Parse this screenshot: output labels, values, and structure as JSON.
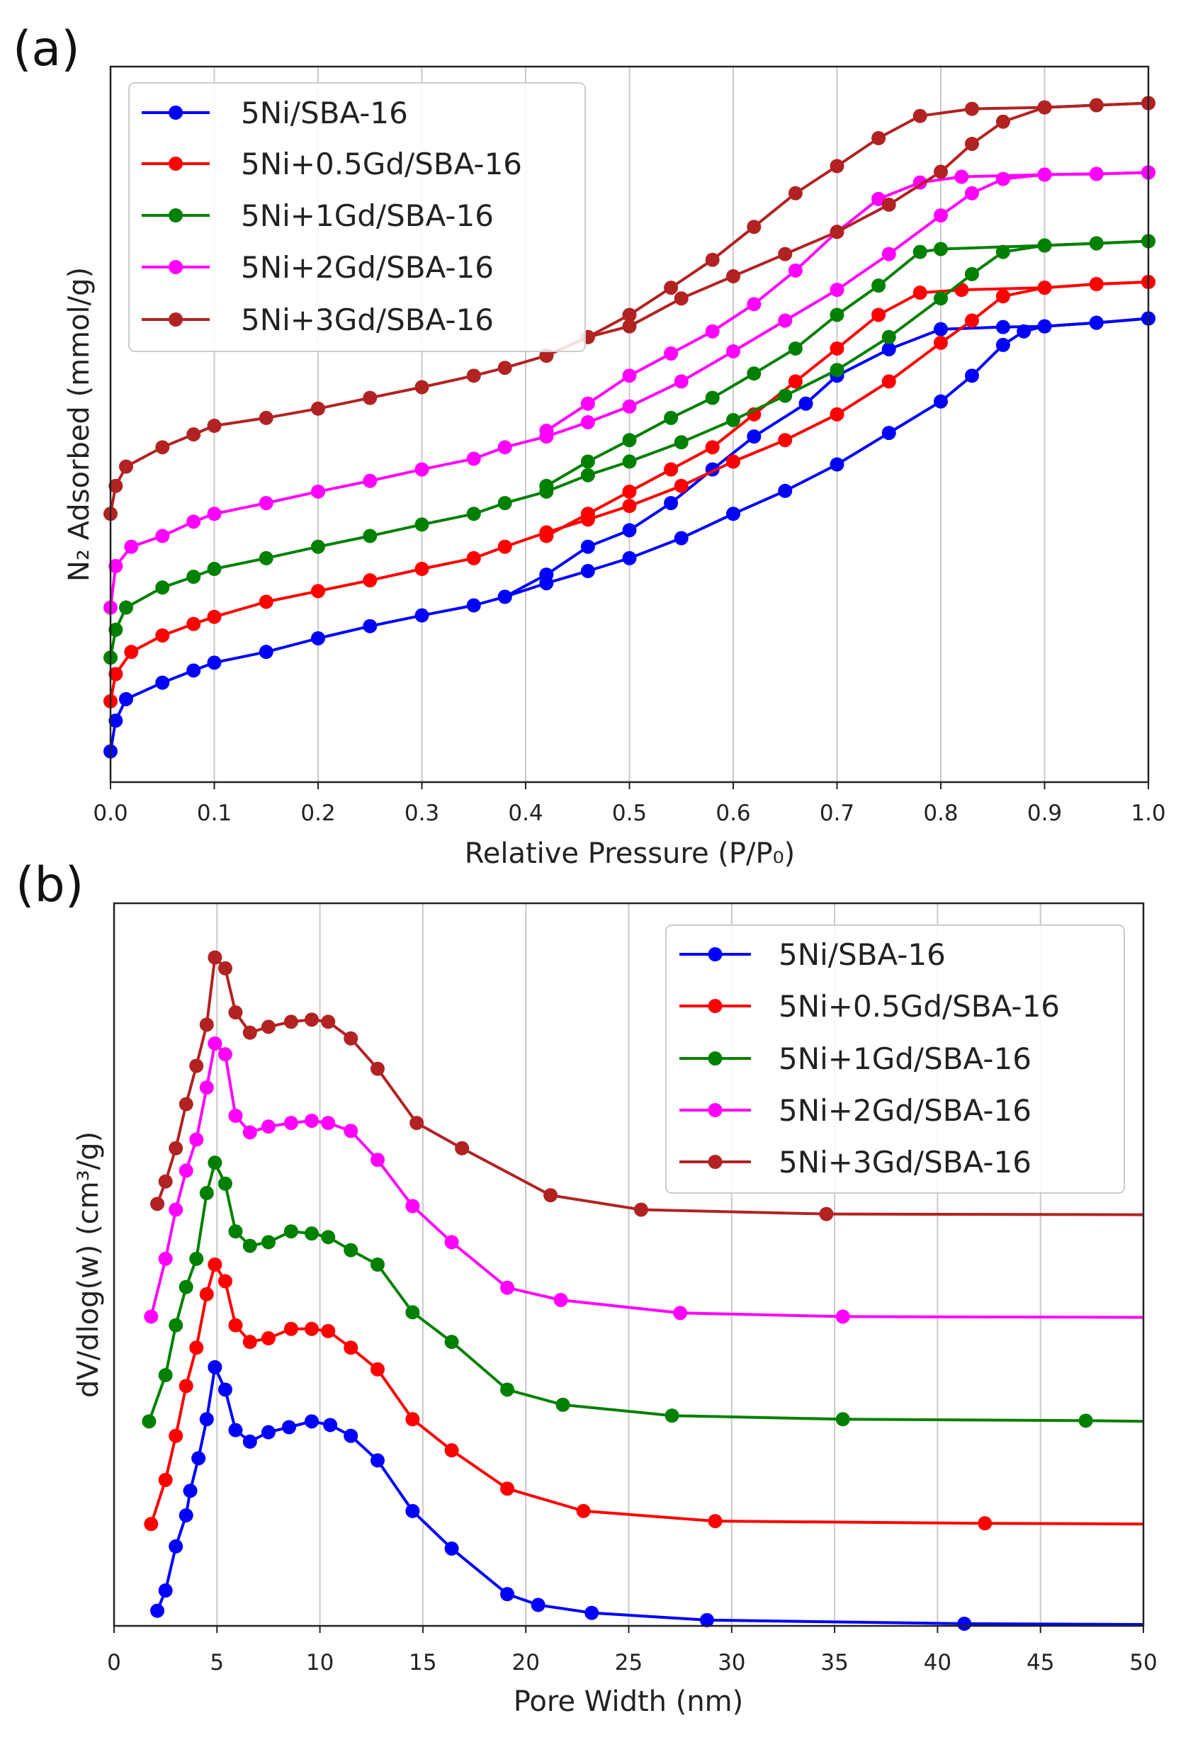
{
  "chart_data": [
    {
      "type": "line",
      "panel_label": "(a)",
      "xlabel": "Relative Pressure (P/P₀)",
      "ylabel": "N₂ Adsorbed (mmol/g)",
      "xlim": [
        0,
        1.0
      ],
      "ylim": [
        0,
        100
      ],
      "y_units_note": "arbitrary (no y tick labels shown)",
      "xticks": [
        "0.0",
        "0.1",
        "0.2",
        "0.3",
        "0.4",
        "0.5",
        "0.6",
        "0.7",
        "0.8",
        "0.9",
        "1.0"
      ],
      "grid": "vertical",
      "legend_position": "top-left",
      "series": [
        {
          "name": "5Ni/SBA-16",
          "color": "#0000ff",
          "adsorption": {
            "x": [
              0,
              0.005,
              0.015,
              0.05,
              0.08,
              0.1,
              0.15,
              0.2,
              0.25,
              0.3,
              0.35,
              0.38,
              0.42,
              0.46,
              0.5,
              0.55,
              0.6,
              0.65,
              0.7,
              0.75,
              0.8,
              0.83,
              0.86,
              0.88,
              0.9,
              0.95,
              1.0
            ],
            "y": [
              4.3,
              8.6,
              11.6,
              13.9,
              15.6,
              16.7,
              18.2,
              20.1,
              21.8,
              23.3,
              24.7,
              25.9,
              27.8,
              29.5,
              31.3,
              34.1,
              37.5,
              40.7,
              44.4,
              48.8,
              53.2,
              56.8,
              61.1,
              63.0,
              63.7,
              64.2,
              64.8
            ]
          },
          "desorption": {
            "x": [
              1.0,
              0.95,
              0.9,
              0.86,
              0.8,
              0.75,
              0.7,
              0.67,
              0.62,
              0.58,
              0.54,
              0.5,
              0.46,
              0.42,
              0.38
            ],
            "y": [
              64.8,
              64.2,
              63.7,
              63.6,
              63.3,
              60.5,
              56.8,
              52.9,
              48.3,
              43.7,
              39.0,
              35.2,
              32.9,
              29.0,
              25.9
            ]
          }
        },
        {
          "name": "5Ni+0.5Gd/SBA-16",
          "color": "#ff0000",
          "adsorption": {
            "x": [
              0,
              0.005,
              0.02,
              0.05,
              0.08,
              0.1,
              0.15,
              0.2,
              0.25,
              0.3,
              0.35,
              0.38,
              0.42,
              0.46,
              0.5,
              0.55,
              0.6,
              0.65,
              0.7,
              0.75,
              0.8,
              0.83,
              0.86,
              0.9,
              0.95,
              1.0
            ],
            "y": [
              11.3,
              15.1,
              18.2,
              20.5,
              22.1,
              23.1,
              25.2,
              26.7,
              28.2,
              29.8,
              31.3,
              32.9,
              34.9,
              36.7,
              38.6,
              41.4,
              44.8,
              47.8,
              51.4,
              56.0,
              61.4,
              64.5,
              67.9,
              69.1,
              69.6,
              69.9
            ]
          },
          "desorption": {
            "x": [
              1.0,
              0.95,
              0.9,
              0.82,
              0.78,
              0.74,
              0.7,
              0.66,
              0.62,
              0.58,
              0.54,
              0.5,
              0.46,
              0.42
            ],
            "y": [
              69.9,
              69.6,
              69.1,
              68.8,
              68.4,
              65.3,
              60.6,
              56.0,
              51.4,
              46.8,
              43.7,
              40.6,
              37.5,
              34.4
            ]
          }
        },
        {
          "name": "5Ni+1Gd/SBA-16",
          "color": "#008000",
          "adsorption": {
            "x": [
              0,
              0.005,
              0.015,
              0.05,
              0.08,
              0.1,
              0.15,
              0.2,
              0.25,
              0.3,
              0.35,
              0.38,
              0.42,
              0.46,
              0.5,
              0.55,
              0.6,
              0.65,
              0.7,
              0.75,
              0.8,
              0.83,
              0.86,
              0.9,
              0.95,
              1.0
            ],
            "y": [
              17.4,
              21.3,
              24.4,
              27.2,
              28.7,
              29.8,
              31.3,
              32.9,
              34.4,
              36.0,
              37.5,
              39.0,
              40.6,
              42.9,
              44.8,
              47.5,
              50.6,
              54.0,
              57.6,
              62.2,
              67.6,
              71.0,
              74.1,
              75.0,
              75.3,
              75.6
            ]
          },
          "desorption": {
            "x": [
              1.0,
              0.95,
              0.9,
              0.8,
              0.78,
              0.74,
              0.7,
              0.66,
              0.62,
              0.58,
              0.54,
              0.5,
              0.46,
              0.42
            ],
            "y": [
              75.6,
              75.3,
              75.0,
              74.5,
              74.1,
              69.4,
              65.3,
              60.6,
              57.1,
              53.7,
              50.9,
              47.8,
              44.8,
              41.4
            ]
          }
        },
        {
          "name": "5Ni+2Gd/SBA-16",
          "color": "#ff00ff",
          "adsorption": {
            "x": [
              0,
              0.005,
              0.02,
              0.05,
              0.08,
              0.1,
              0.15,
              0.2,
              0.25,
              0.3,
              0.35,
              0.38,
              0.42,
              0.46,
              0.5,
              0.55,
              0.6,
              0.65,
              0.7,
              0.75,
              0.8,
              0.83,
              0.86,
              0.9,
              0.95,
              1.0
            ],
            "y": [
              24.4,
              30.2,
              32.9,
              34.4,
              36.4,
              37.5,
              39.0,
              40.6,
              42.1,
              43.7,
              45.2,
              46.8,
              48.3,
              50.3,
              52.5,
              56.0,
              60.2,
              64.5,
              68.8,
              73.8,
              79.2,
              82.3,
              84.3,
              84.9,
              85.0,
              85.2
            ]
          },
          "desorption": {
            "x": [
              1.0,
              0.95,
              0.9,
              0.82,
              0.78,
              0.74,
              0.7,
              0.66,
              0.62,
              0.58,
              0.54,
              0.5,
              0.46,
              0.42
            ],
            "y": [
              85.2,
              85.0,
              84.9,
              84.6,
              83.8,
              81.5,
              76.9,
              71.5,
              66.8,
              63.0,
              59.9,
              56.8,
              52.9,
              49.1
            ]
          }
        },
        {
          "name": "5Ni+3Gd/SBA-16",
          "color": "#b22222",
          "adsorption": {
            "x": [
              0,
              0.005,
              0.015,
              0.05,
              0.08,
              0.1,
              0.15,
              0.2,
              0.25,
              0.3,
              0.35,
              0.38,
              0.42,
              0.46,
              0.5,
              0.55,
              0.6,
              0.65,
              0.7,
              0.75,
              0.8,
              0.83,
              0.86,
              0.9,
              0.95,
              1.0
            ],
            "y": [
              37.5,
              41.4,
              44.1,
              46.8,
              48.6,
              49.8,
              50.9,
              52.2,
              53.7,
              55.2,
              56.8,
              57.9,
              59.6,
              62.2,
              63.7,
              67.6,
              70.7,
              73.8,
              76.9,
              80.7,
              85.3,
              89.2,
              92.3,
              94.3,
              94.6,
              94.9
            ]
          },
          "desorption": {
            "x": [
              1.0,
              0.95,
              0.9,
              0.83,
              0.78,
              0.74,
              0.7,
              0.66,
              0.62,
              0.58,
              0.54,
              0.5,
              0.46,
              0.42
            ],
            "y": [
              94.9,
              94.6,
              94.3,
              94.1,
              93.1,
              90.0,
              86.1,
              82.3,
              77.6,
              73.0,
              69.1,
              65.3,
              62.2,
              59.6
            ]
          }
        }
      ]
    },
    {
      "type": "line",
      "panel_label": "(b)",
      "xlabel": "Pore Width (nm)",
      "ylabel": "dV/dlog(w) (cm³/g)",
      "xlim": [
        0,
        50
      ],
      "ylim": [
        0,
        100
      ],
      "y_units_note": "arbitrary (no y tick labels shown)",
      "xticks": [
        "0",
        "5",
        "10",
        "15",
        "20",
        "25",
        "30",
        "35",
        "40",
        "45",
        "50"
      ],
      "grid": "vertical",
      "legend_position": "top-right",
      "series": [
        {
          "name": "5Ni/SBA-16",
          "color": "#0000ff",
          "x": [
            2.1,
            2.5,
            3,
            3.5,
            3.7,
            4.1,
            4.5,
            4.9,
            5.4,
            5.9,
            6.6,
            7.5,
            8.5,
            9.6,
            10.5,
            11.5,
            12.8,
            14.5,
            16.4,
            19.1,
            20.6,
            23.2,
            28.8,
            41.3,
            50
          ],
          "y": [
            2.1,
            4.9,
            11.0,
            15.3,
            18.7,
            23.2,
            28.6,
            35.8,
            32.7,
            27.1,
            25.5,
            26.8,
            27.5,
            28.3,
            27.8,
            26.3,
            22.9,
            15.9,
            10.7,
            4.4,
            2.9,
            1.8,
            0.8,
            0.3,
            0.2
          ]
        },
        {
          "name": "5Ni+0.5Gd/SBA-16",
          "color": "#ff0000",
          "x": [
            1.8,
            2.5,
            3,
            3.5,
            4,
            4.5,
            4.9,
            5.4,
            5.9,
            6.6,
            7.5,
            8.6,
            9.6,
            10.4,
            11.5,
            12.8,
            14.5,
            16.4,
            19.1,
            22.8,
            29.2,
            42.3,
            50
          ],
          "y": [
            14.1,
            20.2,
            26.3,
            33.2,
            38.5,
            45.9,
            50.0,
            47.7,
            41.6,
            39.3,
            39.8,
            41.1,
            41.1,
            40.8,
            38.5,
            35.5,
            28.6,
            24.3,
            19.0,
            15.9,
            14.5,
            14.2,
            14.1
          ]
        },
        {
          "name": "5Ni+1Gd/SBA-16",
          "color": "#008000",
          "x": [
            1.7,
            2.5,
            3,
            3.5,
            4,
            4.5,
            4.9,
            5.4,
            5.9,
            6.6,
            7.5,
            8.6,
            9.6,
            10.4,
            11.5,
            12.8,
            14.5,
            16.4,
            19.1,
            21.8,
            27.1,
            35.4,
            47.2,
            50
          ],
          "y": [
            28.3,
            34.7,
            41.6,
            46.9,
            50.8,
            59.9,
            64.1,
            61.2,
            54.6,
            52.6,
            53.1,
            54.6,
            54.3,
            53.8,
            52.0,
            50.0,
            43.4,
            39.3,
            32.7,
            30.6,
            29.1,
            28.6,
            28.4,
            28.3
          ]
        },
        {
          "name": "5Ni+2Gd/SBA-16",
          "color": "#ff00ff",
          "x": [
            1.8,
            2.5,
            3,
            3.5,
            4,
            4.5,
            4.9,
            5.4,
            5.9,
            6.6,
            7.5,
            8.6,
            9.6,
            10.4,
            11.5,
            12.8,
            14.5,
            16.4,
            19.1,
            21.7,
            27.5,
            35.4,
            50
          ],
          "y": [
            42.8,
            50.8,
            57.6,
            63.0,
            67.3,
            74.5,
            80.6,
            79.1,
            70.6,
            68.3,
            69.1,
            69.6,
            69.9,
            69.6,
            68.5,
            64.5,
            58.1,
            53.1,
            46.8,
            45.1,
            43.3,
            42.8,
            42.7
          ]
        },
        {
          "name": "5Ni+3Gd/SBA-16",
          "color": "#b22222",
          "x": [
            2.1,
            2.5,
            3,
            3.5,
            4,
            4.5,
            4.9,
            5.4,
            5.9,
            6.6,
            7.5,
            8.6,
            9.6,
            10.4,
            11.5,
            12.8,
            14.7,
            16.9,
            21.2,
            25.6,
            34.6,
            50
          ],
          "y": [
            58.4,
            61.5,
            66.1,
            72.2,
            77.5,
            83.2,
            92.5,
            91.0,
            84.9,
            82.1,
            82.9,
            83.6,
            83.9,
            83.6,
            81.3,
            77.1,
            69.6,
            66.1,
            59.6,
            57.6,
            57.0,
            56.9
          ]
        }
      ]
    }
  ]
}
